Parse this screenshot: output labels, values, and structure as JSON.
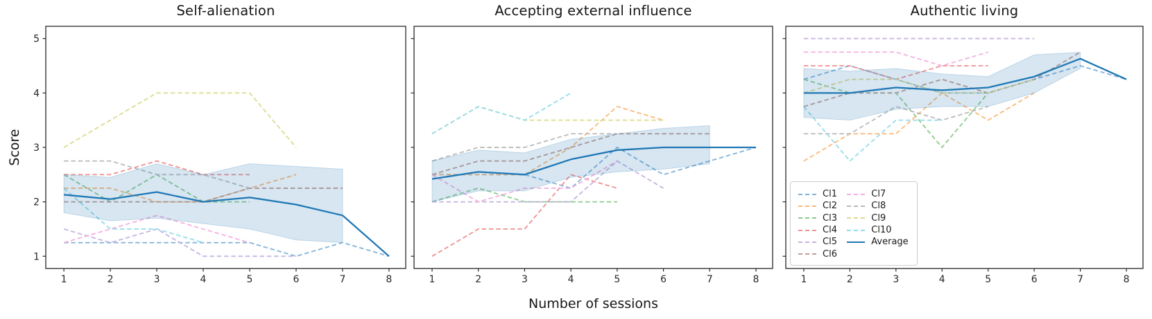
{
  "figure": {
    "ylabel": "Score",
    "xlabel": "Number of sessions",
    "background": "#ffffff",
    "spine_color": "#262626",
    "tick_text_color": "#262626",
    "average_color": "#1f77b4",
    "band_fill": "#1f77b4",
    "band_opacity": 0.18
  },
  "legend": {
    "position": "lower-left-of-third-subplot",
    "entries": [
      {
        "label": "Cl1",
        "color": "#7fb2d8",
        "dash": true
      },
      {
        "label": "Cl2",
        "color": "#fab878",
        "dash": true
      },
      {
        "label": "Cl3",
        "color": "#8cca8c",
        "dash": true
      },
      {
        "label": "Cl4",
        "color": "#ee8f8f",
        "dash": true
      },
      {
        "label": "Cl5",
        "color": "#c4b2e0",
        "dash": true
      },
      {
        "label": "Cl6",
        "color": "#c29d94",
        "dash": true
      },
      {
        "label": "Cl7",
        "color": "#f3b0e0",
        "dash": true
      },
      {
        "label": "Cl8",
        "color": "#b9b9b9",
        "dash": true
      },
      {
        "label": "Cl9",
        "color": "#dbdb8d",
        "dash": true
      },
      {
        "label": "Cl10",
        "color": "#93dcea",
        "dash": true
      },
      {
        "label": "Average",
        "color": "#1f77b4",
        "dash": false
      }
    ]
  },
  "chart_data": [
    {
      "type": "line",
      "title": "Self-alienation",
      "x": [
        1,
        2,
        3,
        4,
        5,
        6,
        7,
        8
      ],
      "xticks": [
        1,
        2,
        3,
        4,
        5,
        6,
        7,
        8
      ],
      "yticks": [
        1,
        2,
        3,
        4,
        5
      ],
      "xlim": [
        0.61,
        8.36
      ],
      "ylim": [
        0.775,
        5.225
      ],
      "show_ytick_labels": true,
      "grid": false,
      "series": [
        {
          "name": "Cl1",
          "values": [
            1.25,
            1.25,
            1.25,
            1.25,
            1.25,
            1.0,
            1.25,
            1.0
          ]
        },
        {
          "name": "Cl2",
          "values": [
            2.25,
            2.25,
            2.0,
            2.0,
            2.25,
            2.5
          ]
        },
        {
          "name": "Cl3",
          "values": [
            2.5,
            2.0,
            2.5,
            2.0,
            2.0
          ]
        },
        {
          "name": "Cl4",
          "values": [
            2.5,
            2.5,
            2.75,
            2.5,
            2.5
          ]
        },
        {
          "name": "Cl5",
          "values": [
            1.5,
            1.25,
            1.5,
            1.0,
            1.0,
            1.0
          ]
        },
        {
          "name": "Cl6",
          "values": [
            2.0,
            2.0,
            2.0,
            2.0,
            2.25,
            2.25,
            2.25
          ]
        },
        {
          "name": "Cl7",
          "values": [
            1.25,
            1.5,
            1.75,
            1.5,
            1.25
          ]
        },
        {
          "name": "Cl8",
          "values": [
            2.75,
            2.75,
            2.5,
            2.5,
            2.25
          ]
        },
        {
          "name": "Cl9",
          "values": [
            3.0,
            3.5,
            4.0,
            4.0,
            4.0,
            3.0
          ]
        },
        {
          "name": "Cl10",
          "values": [
            2.25,
            1.5,
            1.5,
            1.25
          ]
        }
      ],
      "average": {
        "name": "Average",
        "values": [
          2.13,
          2.05,
          2.18,
          2.0,
          2.08,
          1.95,
          1.75,
          1.0
        ]
      },
      "band": {
        "x": [
          1,
          2,
          3,
          4,
          5,
          6,
          7
        ],
        "lo": [
          1.8,
          1.65,
          1.7,
          1.6,
          1.5,
          1.3,
          1.25
        ],
        "hi": [
          2.5,
          2.45,
          2.7,
          2.5,
          2.7,
          2.65,
          2.6
        ]
      }
    },
    {
      "type": "line",
      "title": "Accepting external influence",
      "x": [
        1,
        2,
        3,
        4,
        5,
        6,
        7,
        8
      ],
      "xticks": [
        1,
        2,
        3,
        4,
        5,
        6,
        7,
        8
      ],
      "yticks": [
        1,
        2,
        3,
        4,
        5
      ],
      "xlim": [
        0.61,
        8.36
      ],
      "ylim": [
        0.775,
        5.225
      ],
      "show_ytick_labels": false,
      "grid": false,
      "series": [
        {
          "name": "Cl1",
          "values": [
            2.5,
            2.5,
            2.5,
            2.25,
            3.0,
            2.5,
            2.75,
            3.0
          ]
        },
        {
          "name": "Cl2",
          "values": [
            2.5,
            2.5,
            2.5,
            3.0,
            3.75,
            3.5
          ]
        },
        {
          "name": "Cl3",
          "values": [
            2.0,
            2.25,
            2.0,
            2.0,
            2.0
          ]
        },
        {
          "name": "Cl4",
          "values": [
            1.0,
            1.5,
            1.5,
            2.5,
            2.25
          ]
        },
        {
          "name": "Cl5",
          "values": [
            2.0,
            2.0,
            2.0,
            2.0,
            2.75,
            2.25
          ]
        },
        {
          "name": "Cl6",
          "values": [
            2.5,
            2.75,
            2.75,
            3.0,
            3.25,
            3.25,
            3.25
          ]
        },
        {
          "name": "Cl7",
          "values": [
            2.5,
            2.0,
            2.25,
            2.25,
            2.75
          ]
        },
        {
          "name": "Cl8",
          "values": [
            2.75,
            3.0,
            3.0,
            3.25,
            3.25
          ]
        },
        {
          "name": "Cl9",
          "values": [
            3.25,
            3.75,
            3.5,
            3.5,
            3.5,
            3.5
          ]
        },
        {
          "name": "Cl10",
          "values": [
            3.25,
            3.75,
            3.5,
            4.0
          ]
        }
      ],
      "average": {
        "name": "Average",
        "values": [
          2.42,
          2.55,
          2.5,
          2.78,
          2.95,
          3.0,
          3.0,
          3.0
        ]
      },
      "band": {
        "x": [
          1,
          2,
          3,
          4,
          5,
          6,
          7
        ],
        "lo": [
          2.0,
          2.2,
          2.2,
          2.45,
          2.55,
          2.6,
          2.7
        ],
        "hi": [
          2.75,
          2.95,
          2.9,
          3.15,
          3.25,
          3.35,
          3.4
        ]
      }
    },
    {
      "type": "line",
      "title": "Authentic living",
      "x": [
        1,
        2,
        3,
        4,
        5,
        6,
        7,
        8
      ],
      "xticks": [
        1,
        2,
        3,
        4,
        5,
        6,
        7,
        8
      ],
      "yticks": [
        1,
        2,
        3,
        4,
        5
      ],
      "xlim": [
        0.61,
        8.36
      ],
      "ylim": [
        0.775,
        5.225
      ],
      "show_ytick_labels": false,
      "grid": false,
      "series": [
        {
          "name": "Cl1",
          "values": [
            4.25,
            4.5,
            4.25,
            4.0,
            4.0,
            4.25,
            4.5,
            4.25
          ]
        },
        {
          "name": "Cl2",
          "values": [
            2.75,
            3.25,
            3.25,
            4.0,
            3.5,
            4.0
          ]
        },
        {
          "name": "Cl3",
          "values": [
            4.25,
            4.0,
            4.0,
            3.0,
            4.0
          ]
        },
        {
          "name": "Cl4",
          "values": [
            4.5,
            4.5,
            4.25,
            4.5,
            4.5
          ]
        },
        {
          "name": "Cl5",
          "values": [
            5.0,
            5.0,
            5.0,
            5.0,
            5.0,
            5.0
          ]
        },
        {
          "name": "Cl6",
          "values": [
            3.75,
            4.0,
            4.0,
            4.25,
            4.0,
            4.25,
            4.75
          ]
        },
        {
          "name": "Cl7",
          "values": [
            4.75,
            4.75,
            4.75,
            4.5,
            4.75
          ]
        },
        {
          "name": "Cl8",
          "values": [
            3.25,
            3.25,
            3.75,
            3.5,
            3.75
          ]
        },
        {
          "name": "Cl9",
          "values": [
            4.0,
            4.25,
            4.25,
            4.0,
            4.0,
            4.25
          ]
        },
        {
          "name": "Cl10",
          "values": [
            3.75,
            2.75,
            3.5,
            3.5
          ]
        }
      ],
      "average": {
        "name": "Average",
        "values": [
          4.0,
          4.0,
          4.1,
          4.05,
          4.1,
          4.3,
          4.63,
          4.25
        ]
      },
      "band": {
        "x": [
          1,
          2,
          3,
          4,
          5,
          6,
          7
        ],
        "lo": [
          3.55,
          3.5,
          3.7,
          3.75,
          3.75,
          4.0,
          4.45
        ],
        "hi": [
          4.45,
          4.4,
          4.45,
          4.35,
          4.3,
          4.7,
          4.75
        ]
      }
    }
  ]
}
